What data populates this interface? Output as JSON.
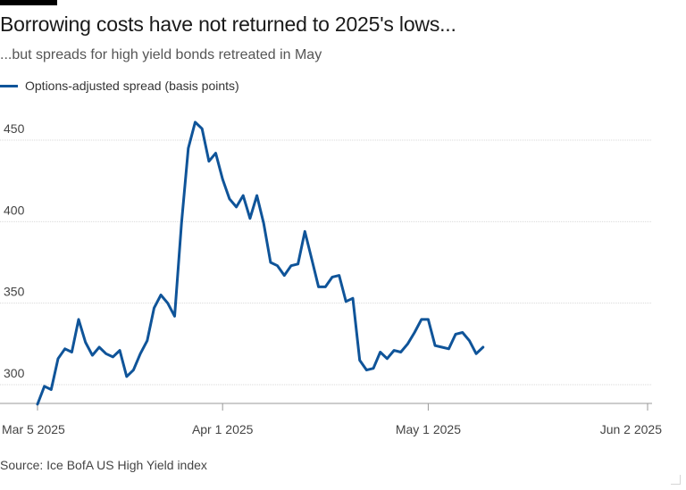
{
  "title": "Borrowing costs have not returned to 2025's lows...",
  "subtitle": "...but spreads for high yield bonds retreated in May",
  "source": "Source: Ice BofA US High Yield index",
  "colors": {
    "series": "#0f5499",
    "grid": "#d9d9d9",
    "axis": "#999999"
  },
  "chart_data": {
    "type": "line",
    "title": "Borrowing costs have not returned to 2025's lows...",
    "subtitle": "...but spreads for high yield bonds retreated in May",
    "xlabel": "",
    "ylabel": "",
    "ylim": [
      290,
      465
    ],
    "yticks": [
      300,
      350,
      400,
      450
    ],
    "xticks": [
      {
        "day": 0,
        "label": "Mar 5 2025"
      },
      {
        "day": 27,
        "label": "Apr 1 2025"
      },
      {
        "day": 57,
        "label": "May 1 2025"
      },
      {
        "day": 89,
        "label": "Jun 2 2025"
      }
    ],
    "grid": true,
    "legend": "top-left",
    "series": [
      {
        "name": "Options-adjusted spread (basis points)",
        "color": "#0f5499",
        "points": [
          [
            0,
            288
          ],
          [
            1,
            299
          ],
          [
            2,
            297
          ],
          [
            3,
            316
          ],
          [
            4,
            322
          ],
          [
            5,
            320
          ],
          [
            6,
            340
          ],
          [
            7,
            326
          ],
          [
            8,
            318
          ],
          [
            9,
            323
          ],
          [
            10,
            319
          ],
          [
            11,
            317
          ],
          [
            12,
            321
          ],
          [
            13,
            305
          ],
          [
            14,
            309
          ],
          [
            15,
            319
          ],
          [
            16,
            327
          ],
          [
            17,
            347
          ],
          [
            18,
            355
          ],
          [
            19,
            350
          ],
          [
            20,
            342
          ],
          [
            21,
            399
          ],
          [
            22,
            445
          ],
          [
            23,
            461
          ],
          [
            24,
            457
          ],
          [
            25,
            437
          ],
          [
            26,
            442
          ],
          [
            27,
            426
          ],
          [
            28,
            414
          ],
          [
            29,
            409
          ],
          [
            30,
            416
          ],
          [
            31,
            402
          ],
          [
            32,
            416
          ],
          [
            33,
            399
          ],
          [
            34,
            375
          ],
          [
            35,
            373
          ],
          [
            36,
            367
          ],
          [
            37,
            373
          ],
          [
            38,
            374
          ],
          [
            39,
            394
          ],
          [
            40,
            377
          ],
          [
            41,
            360
          ],
          [
            42,
            360
          ],
          [
            43,
            366
          ],
          [
            44,
            367
          ],
          [
            45,
            351
          ],
          [
            46,
            353
          ],
          [
            47,
            315
          ],
          [
            48,
            309
          ],
          [
            49,
            310
          ],
          [
            50,
            320
          ],
          [
            51,
            316
          ],
          [
            52,
            321
          ],
          [
            53,
            320
          ],
          [
            54,
            325
          ],
          [
            55,
            332
          ],
          [
            56,
            340
          ],
          [
            57,
            340
          ],
          [
            58,
            324
          ],
          [
            59,
            323
          ],
          [
            60,
            322
          ],
          [
            61,
            331
          ],
          [
            62,
            332
          ],
          [
            63,
            327
          ],
          [
            64,
            319
          ],
          [
            65,
            323
          ]
        ]
      }
    ]
  }
}
